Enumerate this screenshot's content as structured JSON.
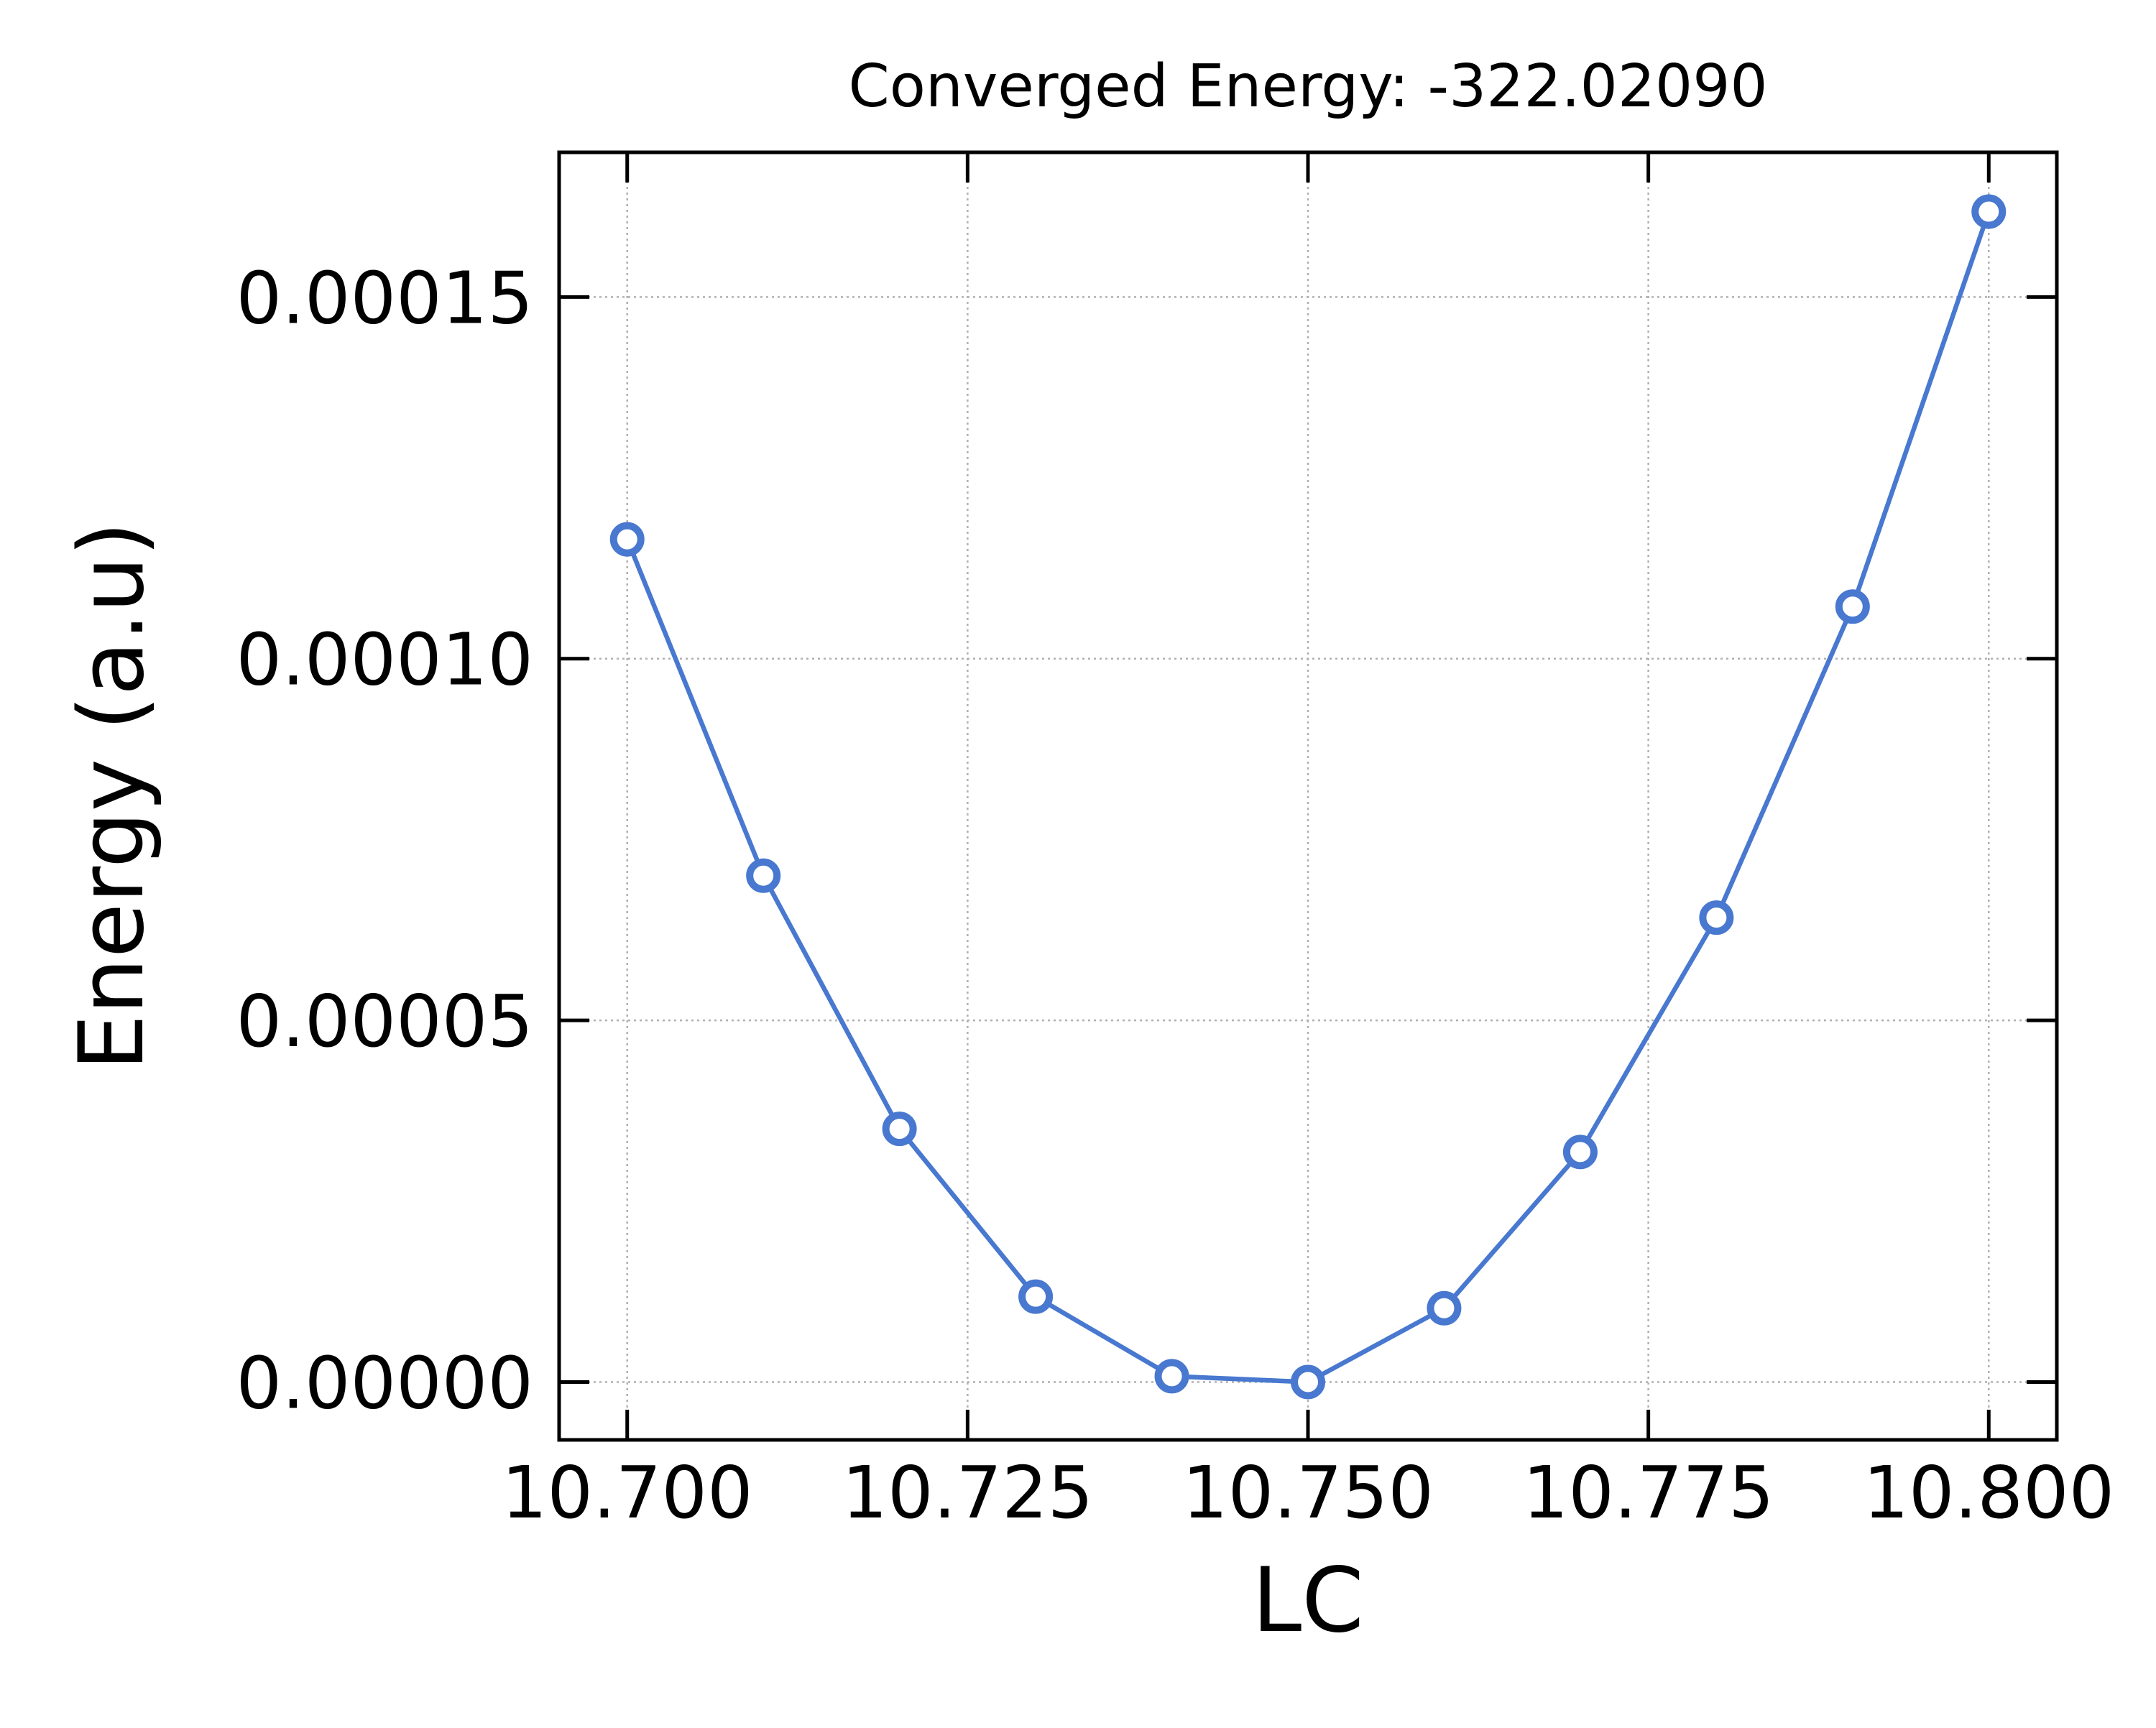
{
  "chart_data": {
    "type": "line",
    "title": "Converged Energy: -322.02090",
    "xlabel": "LC",
    "ylabel": "Energy (a.u)",
    "xlim": [
      10.695,
      10.805
    ],
    "ylim": [
      -8e-06,
      0.00017
    ],
    "x_ticks": [
      10.7,
      10.725,
      10.75,
      10.775,
      10.8
    ],
    "x_tick_labels": [
      "10.700",
      "10.725",
      "10.750",
      "10.775",
      "10.800"
    ],
    "y_ticks": [
      0.0,
      5e-05,
      0.0001,
      0.00015
    ],
    "y_tick_labels": [
      "0.00000",
      "0.00005",
      "0.00010",
      "0.00015"
    ],
    "grid": true,
    "series": [
      {
        "color": "#4878cf",
        "marker": "open-circle",
        "x": [
          10.7,
          10.71,
          10.72,
          10.73,
          10.74,
          10.75,
          10.76,
          10.77,
          10.78,
          10.79,
          10.8
        ],
        "y": [
          0.0001165,
          7e-05,
          3.5e-05,
          1.18e-05,
          8e-07,
          0.0,
          1.02e-05,
          3.18e-05,
          6.42e-05,
          0.0001072,
          0.0001618
        ]
      }
    ]
  }
}
